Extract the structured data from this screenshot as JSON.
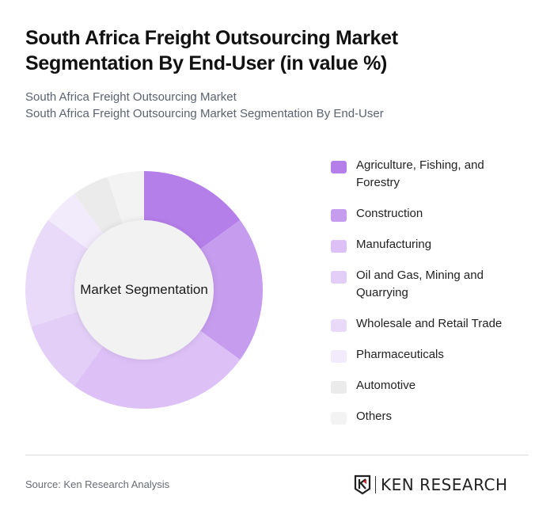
{
  "header": {
    "title_line1": "South Africa Freight Outsourcing Market",
    "title_line2": "Segmentation By End-User (in value %)",
    "subtitle_line1": "South Africa Freight Outsourcing Market",
    "subtitle_line2": "South Africa Freight Outsourcing Market Segmentation By End-User"
  },
  "chart": {
    "center_label": "Market Segmentation"
  },
  "legend": {
    "items": [
      {
        "label": "Agriculture, Fishing, and Forestry",
        "color": "#b57fea"
      },
      {
        "label": "Construction",
        "color": "#c69cee"
      },
      {
        "label": "Manufacturing",
        "color": "#dcc0f6"
      },
      {
        "label": "Oil and Gas, Mining and Quarrying",
        "color": "#e2cef6"
      },
      {
        "label": "Wholesale and Retail Trade",
        "color": "#e9dafa"
      },
      {
        "label": "Pharmaceuticals",
        "color": "#f2ebfb"
      },
      {
        "label": "Automotive",
        "color": "#ebebeb"
      },
      {
        "label": "Others",
        "color": "#f3f3f3"
      }
    ]
  },
  "footer": {
    "source": "Source: Ken Research Analysis",
    "logo_text": "KEN RESEARCH"
  },
  "chart_data": {
    "type": "pie",
    "subtype": "donut",
    "title": "South Africa Freight Outsourcing Market Segmentation By End-User (in value %)",
    "center_label": "Market Segmentation",
    "categories": [
      "Agriculture, Fishing, and Forestry",
      "Construction",
      "Manufacturing",
      "Oil and Gas, Mining and Quarrying",
      "Wholesale and Retail Trade",
      "Pharmaceuticals",
      "Automotive",
      "Others"
    ],
    "values": [
      15,
      20,
      25,
      10,
      15,
      5,
      5,
      5
    ],
    "colors": [
      "#b57fea",
      "#c69cee",
      "#dcc0f6",
      "#e2cef6",
      "#e9dafa",
      "#f2ebfb",
      "#ebebeb",
      "#f3f3f3"
    ],
    "unit": "%",
    "legend_position": "right"
  }
}
